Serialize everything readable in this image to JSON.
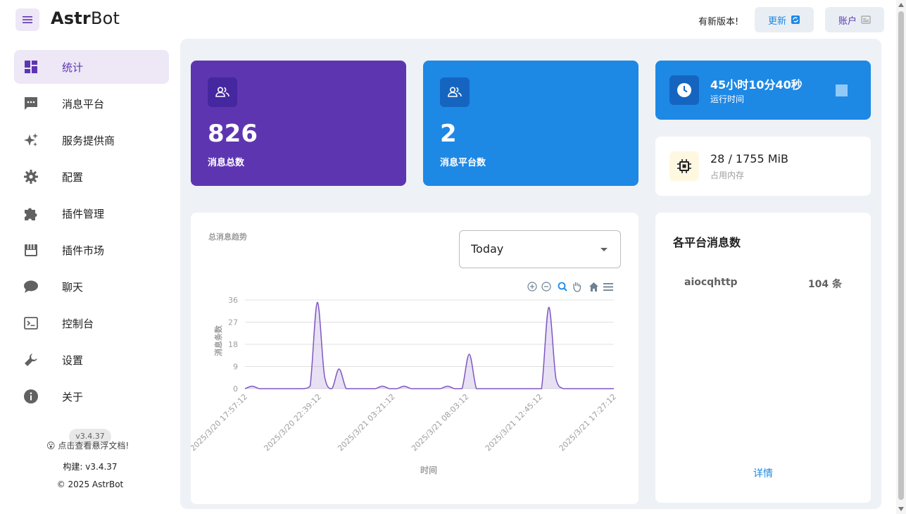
{
  "header": {
    "logo_bold": "Astr",
    "logo_rest": "Bot",
    "new_version": "有新版本!",
    "update_label": "更新",
    "account_label": "账户"
  },
  "sidebar": {
    "items": [
      {
        "label": "统计",
        "icon": "dashboard-icon"
      },
      {
        "label": "消息平台",
        "icon": "message-icon"
      },
      {
        "label": "服务提供商",
        "icon": "sparkle-icon"
      },
      {
        "label": "配置",
        "icon": "gear-icon"
      },
      {
        "label": "插件管理",
        "icon": "puzzle-icon"
      },
      {
        "label": "插件市场",
        "icon": "store-icon"
      },
      {
        "label": "聊天",
        "icon": "chat-icon"
      },
      {
        "label": "控制台",
        "icon": "console-icon"
      },
      {
        "label": "设置",
        "icon": "wrench-icon"
      },
      {
        "label": "关于",
        "icon": "info-icon"
      }
    ],
    "version_tag": "v3.4.37",
    "docs_link": "点击查看悬浮文档!",
    "build_info": "构建: v3.4.37",
    "copyright": "© 2025 AstrBot"
  },
  "stats": {
    "total_messages": "826",
    "total_messages_label": "消息总数",
    "platform_count": "2",
    "platform_count_label": "消息平台数",
    "runtime": "45小时10分40秒",
    "runtime_label": "运行时间",
    "memory": "28 / 1755 MiB",
    "memory_label": "占用内存"
  },
  "trend": {
    "title": "总消息趋势",
    "range_selected": "Today"
  },
  "platforms": {
    "title": "各平台消息数",
    "rows": [
      {
        "name": "aiocqhttp",
        "count": "104 条"
      }
    ],
    "details_label": "详情"
  },
  "colors": {
    "purple": "#5e35b1",
    "blue": "#1e88e5",
    "line": "#7e57c2"
  },
  "chart_data": {
    "type": "area",
    "xlabel": "时间",
    "ylabel": "消息条数",
    "ylim": [
      0,
      36
    ],
    "yticks": [
      0,
      9,
      18,
      27,
      36
    ],
    "xticks": [
      "2025/3/20 17:57:12",
      "2025/3/20 22:39:12",
      "2025/3/21 03:21:12",
      "2025/3/21 08:03:12",
      "2025/3/21 12:45:12",
      "2025/3/21 17:27:12"
    ],
    "series": [
      {
        "values": [
          0,
          1,
          0,
          0,
          0,
          0,
          0,
          0,
          0,
          1,
          35,
          5,
          0,
          8,
          0,
          0,
          0,
          0,
          0,
          1,
          0,
          0,
          1,
          0,
          0,
          0,
          0,
          0,
          1,
          0,
          0,
          14,
          0,
          0,
          0,
          0,
          0,
          0,
          0,
          0,
          0,
          0,
          33,
          4,
          0,
          0,
          0,
          0,
          0,
          0,
          0,
          0
        ]
      }
    ]
  }
}
